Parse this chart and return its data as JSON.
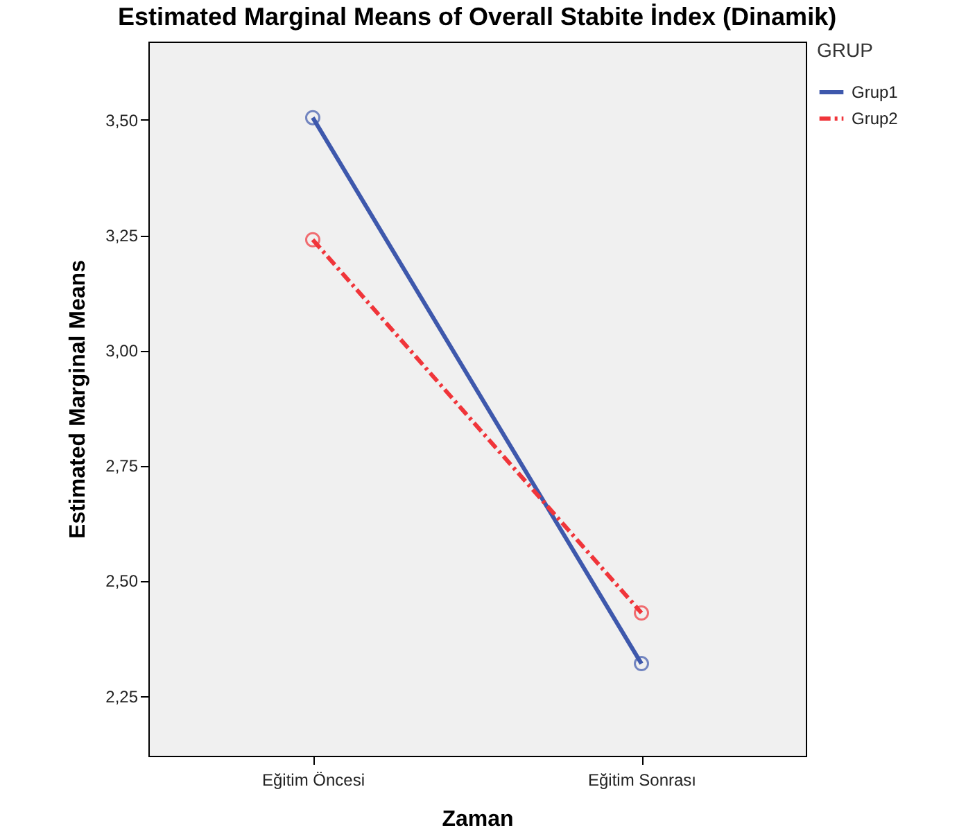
{
  "chart_data": {
    "type": "line",
    "title": "Estimated Marginal Means of Overall Stabite İndex (Dinamik)",
    "xlabel": "Zaman",
    "ylabel": "Estimated Marginal Means",
    "legend_title": "GRUP",
    "categories": [
      "Eğitim Öncesi",
      "Eğitim Sonrası"
    ],
    "series": [
      {
        "name": "Grup1",
        "color": "#3e58ac",
        "values": [
          3.505,
          2.32
        ],
        "line_style": "solid"
      },
      {
        "name": "Grup2",
        "color": "#f0353a",
        "values": [
          3.24,
          2.43
        ],
        "line_style": "dashed"
      }
    ],
    "ylim": [
      2.12,
      3.67
    ],
    "yticks": [
      {
        "value": 2.25,
        "label": "2,25"
      },
      {
        "value": 2.5,
        "label": "2,50"
      },
      {
        "value": 2.75,
        "label": "2,75"
      },
      {
        "value": 3.0,
        "label": "3,00"
      },
      {
        "value": 3.25,
        "label": "3,25"
      },
      {
        "value": 3.5,
        "label": "3,50"
      }
    ],
    "grid": false,
    "legend": "top right",
    "marker": "circle"
  }
}
